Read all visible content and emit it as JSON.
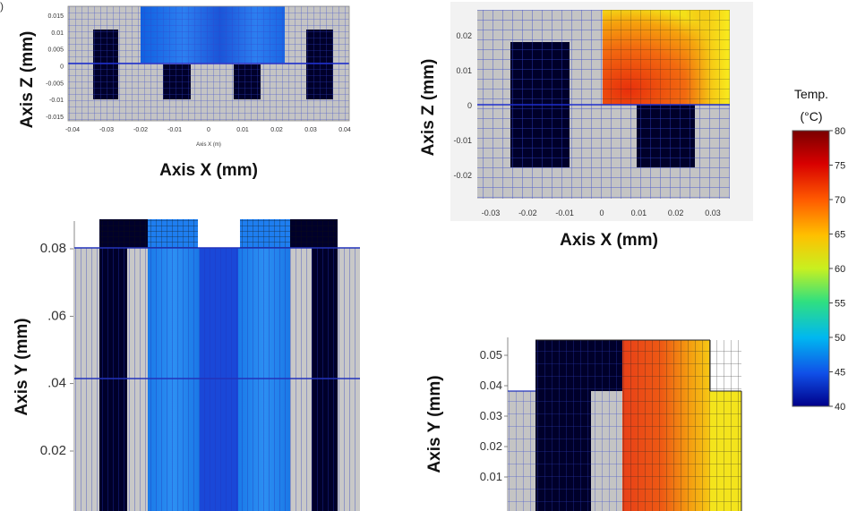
{
  "panel_mark": ")",
  "colorbar": {
    "title": "Temp.",
    "unit": "(°C)",
    "min": 40,
    "max": 80,
    "ticks": [
      "80",
      "75",
      "70",
      "65",
      "60",
      "55",
      "50",
      "45",
      "40"
    ]
  },
  "chart_data": [
    {
      "type": "heatmap",
      "xlabel_small": "Axis X (m)",
      "xlabel": "Axis X (mm)",
      "ylabel": "Axis Z (mm)",
      "xticks": [
        "-0.04",
        "-0.03",
        "-0.02",
        "-0.01",
        "0",
        "0.01",
        "0.02",
        "0.03",
        "0.04"
      ],
      "yticks": [
        "0.015",
        "0.01",
        "0.005",
        "0",
        "-0.005",
        "-0.01",
        "-0.015"
      ],
      "xlim": [
        -0.04,
        0.04
      ],
      "ylim": [
        -0.015,
        0.015
      ],
      "temperature_range_c": [
        42,
        50
      ],
      "regions": [
        "heated top band",
        "dark conductor blocks"
      ]
    },
    {
      "type": "heatmap",
      "xlabel": "Axis X (mm)",
      "ylabel": "Axis Z (mm)",
      "xticks": [
        "-0.03",
        "-0.02",
        "-0.01",
        "0",
        "0.01",
        "0.02",
        "0.03"
      ],
      "yticks": [
        "0.02",
        "0.01",
        "0",
        "-0.01",
        "-0.02"
      ],
      "xlim": [
        -0.035,
        0.035
      ],
      "ylim": [
        -0.025,
        0.025
      ],
      "temperature_range_c": [
        68,
        76
      ],
      "regions": [
        "hot quadrant x>0, z>0",
        "dark blocks"
      ]
    },
    {
      "type": "heatmap",
      "xlabel": "",
      "ylabel": "Axis Y (mm)",
      "yticks": [
        "0.08",
        ".06",
        ".04",
        "0.02"
      ],
      "ylim": [
        0.0,
        0.09
      ],
      "temperature_range_c": [
        42,
        50
      ]
    },
    {
      "type": "heatmap",
      "xlabel": "",
      "ylabel": "Axis Y (mm)",
      "yticks": [
        "0.05",
        "0.04",
        "0.03",
        "0.02",
        "0.01"
      ],
      "ylim": [
        0.0,
        0.056
      ],
      "temperature_range_c": [
        68,
        76
      ]
    }
  ]
}
